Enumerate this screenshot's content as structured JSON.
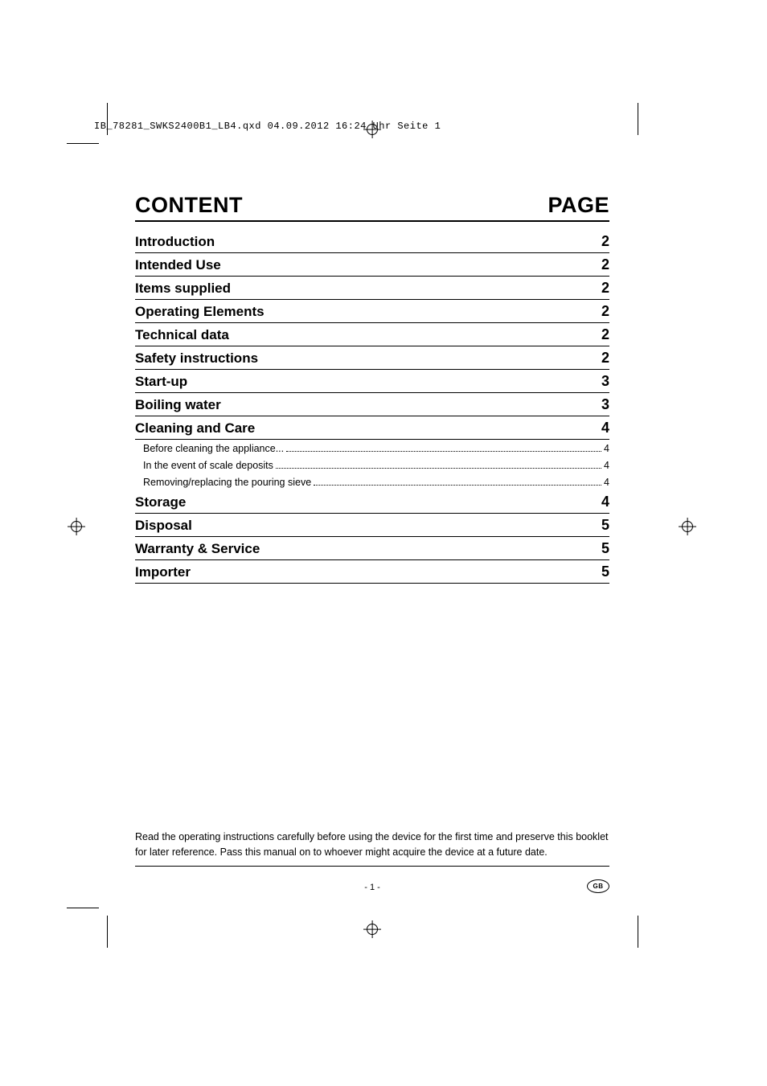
{
  "file_header": "IB_78281_SWKS2400B1_LB4.qxd  04.09.2012  16:24 Uhr  Seite 1",
  "title_left": "CONTENT",
  "title_right": "PAGE",
  "toc": [
    {
      "label": "Introduction",
      "page": "2",
      "subs": []
    },
    {
      "label": "Intended Use",
      "page": "2",
      "subs": []
    },
    {
      "label": "Items supplied",
      "page": "2",
      "subs": []
    },
    {
      "label": "Operating Elements",
      "page": "2",
      "subs": []
    },
    {
      "label": "Technical data",
      "page": "2",
      "subs": []
    },
    {
      "label": "Safety instructions",
      "page": "2",
      "subs": []
    },
    {
      "label": "Start-up",
      "page": "3",
      "subs": []
    },
    {
      "label": "Boiling water",
      "page": "3",
      "subs": []
    },
    {
      "label": "Cleaning and Care",
      "page": "4",
      "subs": [
        {
          "label": "Before cleaning the appliance...",
          "page": "4"
        },
        {
          "label": "In the event of scale deposits",
          "page": "4"
        },
        {
          "label": "Removing/replacing the pouring sieve",
          "page": "4"
        }
      ]
    },
    {
      "label": "Storage",
      "page": "4",
      "subs": []
    },
    {
      "label": "Disposal",
      "page": "5",
      "subs": []
    },
    {
      "label": "Warranty & Service",
      "page": "5",
      "subs": []
    },
    {
      "label": "Importer",
      "page": "5",
      "subs": []
    }
  ],
  "note": "Read the operating instructions carefully before using the device for the first time and preserve this booklet for later reference. Pass this manual on to whoever might acquire the device at a future date.",
  "page_number": "- 1 -",
  "lang_badge": "GB",
  "colors": {
    "text": "#000000",
    "bg": "#ffffff"
  },
  "typography": {
    "heading_size_pt": 20,
    "row_size_pt": 13,
    "sub_size_pt": 9,
    "note_size_pt": 9
  }
}
